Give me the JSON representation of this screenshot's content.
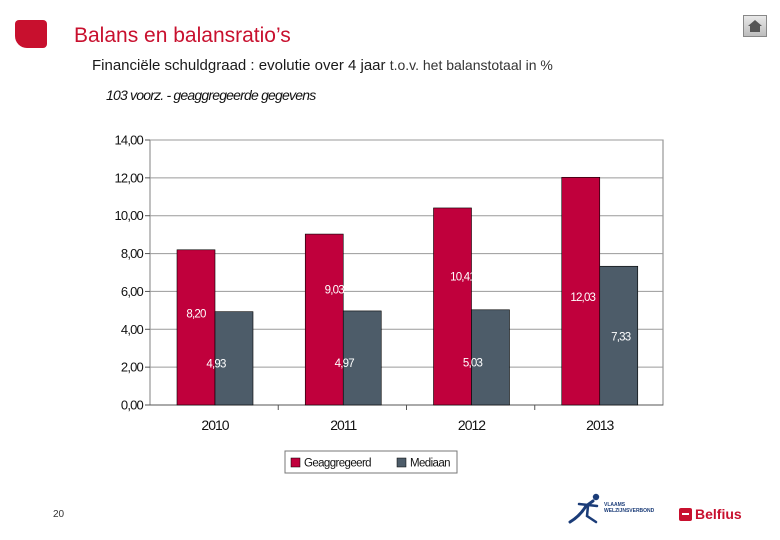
{
  "header": {
    "title": "Balans en balansratio’s",
    "subtitle_main": "Financiële schuldgraad  : evolutie over 4 jaar",
    "subtitle_small": "t.o.v. het balanstotaal in %"
  },
  "chart_note": "103 voorz. - geaggregeerde gegevens",
  "chart_data": {
    "type": "bar",
    "categories": [
      "2010",
      "2011",
      "2012",
      "2013"
    ],
    "series": [
      {
        "name": "Geaggregeerd",
        "color": "#c0003c",
        "values": [
          8.2,
          9.03,
          10.41,
          12.03
        ],
        "labels": [
          "8,20",
          "9,03",
          "10,41",
          "12,03"
        ]
      },
      {
        "name": "Mediaan",
        "color": "#4d5c69",
        "values": [
          4.93,
          4.97,
          5.03,
          7.33
        ],
        "labels": [
          "4,93",
          "4,97",
          "5,03",
          "7,33"
        ]
      }
    ],
    "ylim": [
      0,
      14
    ],
    "yticks": [
      "0,00",
      "2,00",
      "4,00",
      "6,00",
      "8,00",
      "10,00",
      "12,00",
      "14,00"
    ],
    "grid": true,
    "legend_position": "bottom",
    "xlabel": "",
    "ylabel": ""
  },
  "footer": {
    "page_number": "20",
    "partner_logo_text": "VLAAMS WELZIJNSVERBOND",
    "brand_name": "Belfius"
  },
  "icons": {
    "home": "home-icon",
    "brand_mark": "belfius-icon",
    "partner_mark": "vlaams-welzijnsverbond-logo"
  }
}
